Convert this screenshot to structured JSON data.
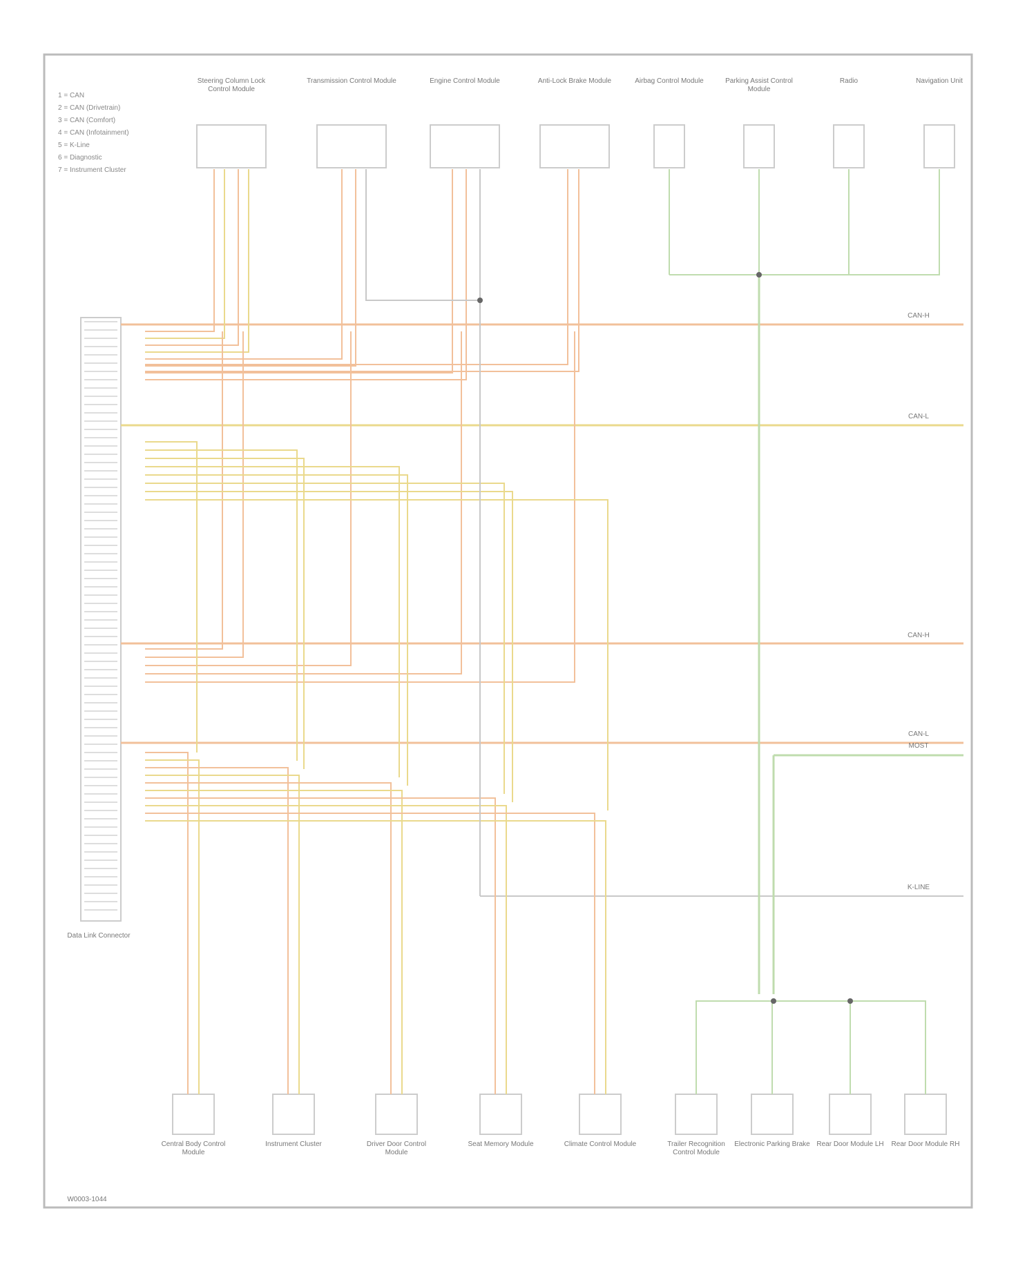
{
  "legend": {
    "items": [
      "1 = CAN",
      "2 = CAN (Drivetrain)",
      "3 = CAN (Comfort)",
      "4 = CAN (Infotainment)",
      "5 = K-Line",
      "6 = Diagnostic",
      "7 = Instrument Cluster"
    ]
  },
  "top_modules": [
    {
      "label": "Steering Column Lock Control Module"
    },
    {
      "label": "Transmission Control Module"
    },
    {
      "label": "Engine Control Module"
    },
    {
      "label": "Anti-Lock Brake Module"
    },
    {
      "label": "Airbag Control Module"
    },
    {
      "label": "Parking Assist Control Module"
    },
    {
      "label": "Radio"
    },
    {
      "label": "Navigation Unit"
    }
  ],
  "bottom_modules": [
    {
      "label": "Central Body Control Module"
    },
    {
      "label": "Instrument Cluster"
    },
    {
      "label": "Driver Door Control Module"
    },
    {
      "label": "Seat Memory Module"
    },
    {
      "label": "Climate Control Module"
    },
    {
      "label": "Trailer Recognition Control Module"
    },
    {
      "label": "Electronic Parking Brake"
    },
    {
      "label": "Rear Door Module LH"
    },
    {
      "label": "Rear Door Module RH"
    }
  ],
  "buses": [
    "CAN-H",
    "CAN-L",
    "CAN-H",
    "CAN-L",
    "MOST",
    "K-LINE"
  ],
  "connector": {
    "label": "Data Link Connector"
  },
  "footer": "W0003-1044"
}
